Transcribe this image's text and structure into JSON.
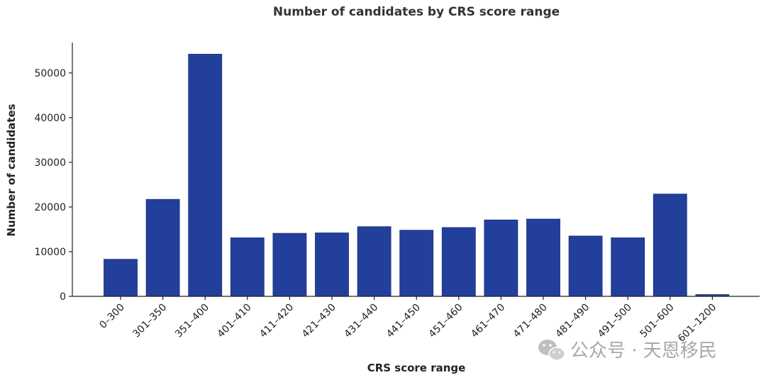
{
  "chart_data": {
    "type": "bar",
    "title": "Number of candidates by CRS score range",
    "xlabel": "CRS score range",
    "ylabel": "Number of candidates",
    "categories": [
      "0–300",
      "301–350",
      "351–400",
      "401–410",
      "411–420",
      "421–430",
      "431–440",
      "441–450",
      "451–460",
      "461–470",
      "471–480",
      "481–490",
      "491–500",
      "501–600",
      "601–1200"
    ],
    "values": [
      8300,
      21700,
      54200,
      13100,
      14100,
      14200,
      15600,
      14800,
      15400,
      17100,
      17300,
      13500,
      13100,
      22900,
      400
    ],
    "yticks": [
      0,
      10000,
      20000,
      30000,
      40000,
      50000
    ],
    "ylim": [
      0,
      56800
    ],
    "bar_color": "#223f9b",
    "grid": false,
    "legend": "none"
  },
  "watermark": {
    "icon": "wechat-icon",
    "text": "公众号 · 天恩移民"
  }
}
